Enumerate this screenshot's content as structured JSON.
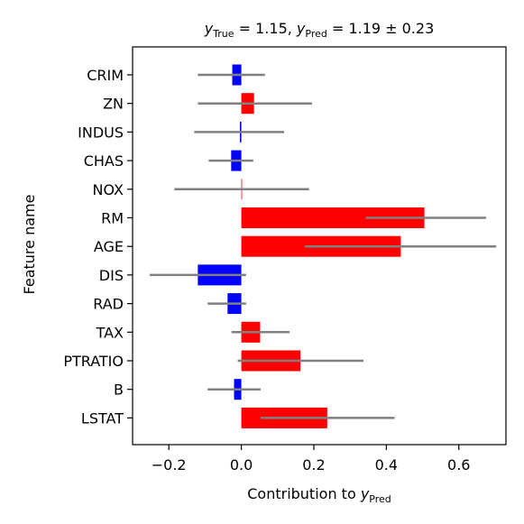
{
  "chart_data": {
    "type": "bar",
    "orientation": "horizontal",
    "title": {
      "y_true_symbol": "y",
      "y_true_sub": "True",
      "y_true_value": " = 1.15, ",
      "y_pred_symbol": "y",
      "y_pred_sub": "Pred",
      "y_pred_value": " = 1.19 ± 0.23"
    },
    "xlabel": {
      "text": "Contribution to ",
      "symbol": "y",
      "sub": "Pred"
    },
    "ylabel": "Feature name",
    "xlim": [
      -0.3,
      0.73
    ],
    "xticks": [
      -0.2,
      0.0,
      0.2,
      0.4,
      0.6
    ],
    "xtick_labels": [
      "−0.2",
      "0.0",
      "0.2",
      "0.4",
      "0.6"
    ],
    "categories": [
      "CRIM",
      "ZN",
      "INDUS",
      "CHAS",
      "NOX",
      "RM",
      "AGE",
      "DIS",
      "RAD",
      "TAX",
      "PTRATIO",
      "B",
      "LSTAT"
    ],
    "values": [
      -0.025,
      0.035,
      -0.004,
      -0.028,
      0.001,
      0.505,
      0.44,
      -0.12,
      -0.038,
      0.052,
      0.163,
      -0.02,
      0.237
    ],
    "error_bars": [
      [
        -0.12,
        0.065
      ],
      [
        -0.12,
        0.195
      ],
      [
        -0.13,
        0.118
      ],
      [
        -0.09,
        0.033
      ],
      [
        -0.185,
        0.187
      ],
      [
        0.343,
        0.675
      ],
      [
        0.175,
        0.703
      ],
      [
        -0.253,
        0.013
      ],
      [
        -0.093,
        0.013
      ],
      [
        -0.027,
        0.133
      ],
      [
        -0.01,
        0.337
      ],
      [
        -0.093,
        0.053
      ],
      [
        0.053,
        0.423
      ]
    ],
    "colors": {
      "positive": "#ff0000",
      "negative": "#0000ff",
      "error_bar": "#808080",
      "axes": "#000000"
    },
    "grid": false,
    "legend": "none"
  }
}
